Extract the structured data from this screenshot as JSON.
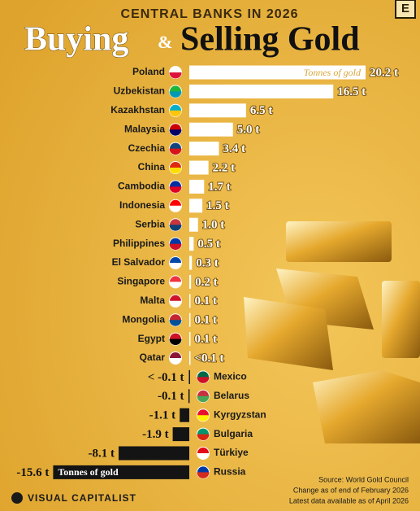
{
  "chart_data": {
    "type": "bar",
    "orientation": "horizontal",
    "title": "CENTRAL BANKS IN 2026",
    "subtitle_parts": [
      "Buying",
      "&",
      "Selling Gold"
    ],
    "categories": [
      "Poland",
      "Uzbekistan",
      "Kazakhstan",
      "Malaysia",
      "Czechia",
      "China",
      "Cambodia",
      "Indonesia",
      "Serbia",
      "Philippines",
      "El Salvador",
      "Singapore",
      "Malta",
      "Mongolia",
      "Egypt",
      "Qatar",
      "Mexico",
      "Belarus",
      "Kyrgyzstan",
      "Bulgaria",
      "Türkiye",
      "Russia"
    ],
    "values": [
      20.2,
      16.5,
      6.5,
      5.0,
      3.4,
      2.2,
      1.7,
      1.5,
      1.0,
      0.5,
      0.3,
      0.2,
      0.1,
      0.1,
      0.1,
      0.05,
      -0.05,
      -0.1,
      -1.1,
      -1.9,
      -8.1,
      -15.6
    ],
    "value_labels": [
      "20.2 t",
      "16.5 t",
      "6.5 t",
      "5.0 t",
      "3.4 t",
      "2.2 t",
      "1.7 t",
      "1.5 t",
      "1.0 t",
      "0.5 t",
      "0.3 t",
      "0.2 t",
      "0.1 t",
      "0.1 t",
      "0.1 t",
      "<0.1 t",
      "< -0.1 t",
      "-0.1 t",
      "-1.1 t",
      "-1.9 t",
      "-8.1 t",
      "-15.6 t"
    ],
    "colors": {
      "positive": "#ffffff",
      "negative": "#141414"
    },
    "annotations": [
      "Tonnes of gold",
      "Tonnes of gold"
    ],
    "source": [
      "Source: World Gold Council",
      "Change as of end of February 2026",
      "Latest data available as of April 2026"
    ],
    "brand": "VISUAL CAPITALIST",
    "badge": "E"
  }
}
